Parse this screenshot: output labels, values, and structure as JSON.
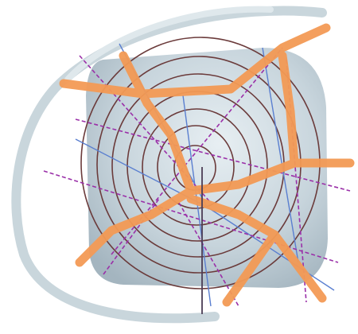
{
  "colors": {
    "background": "#ffffff",
    "swoosh": "#c5d3d9",
    "block": "#aebdc6",
    "block_light": "#dbe5ea",
    "rings": "#6b3b3b",
    "roads": "#f39a55",
    "dashed_lines": "#9a2fa8",
    "thin_lines": "#5a7fd0",
    "axis": "#4b3d55"
  },
  "illustration": {
    "subject": "abstract-map-illustration",
    "ring_count": 7,
    "layers": [
      "background-swoosh",
      "rounded-block",
      "concentric-rings",
      "thin-blue-lines",
      "dashed-purple-lines",
      "orange-roads",
      "center-axis"
    ]
  }
}
